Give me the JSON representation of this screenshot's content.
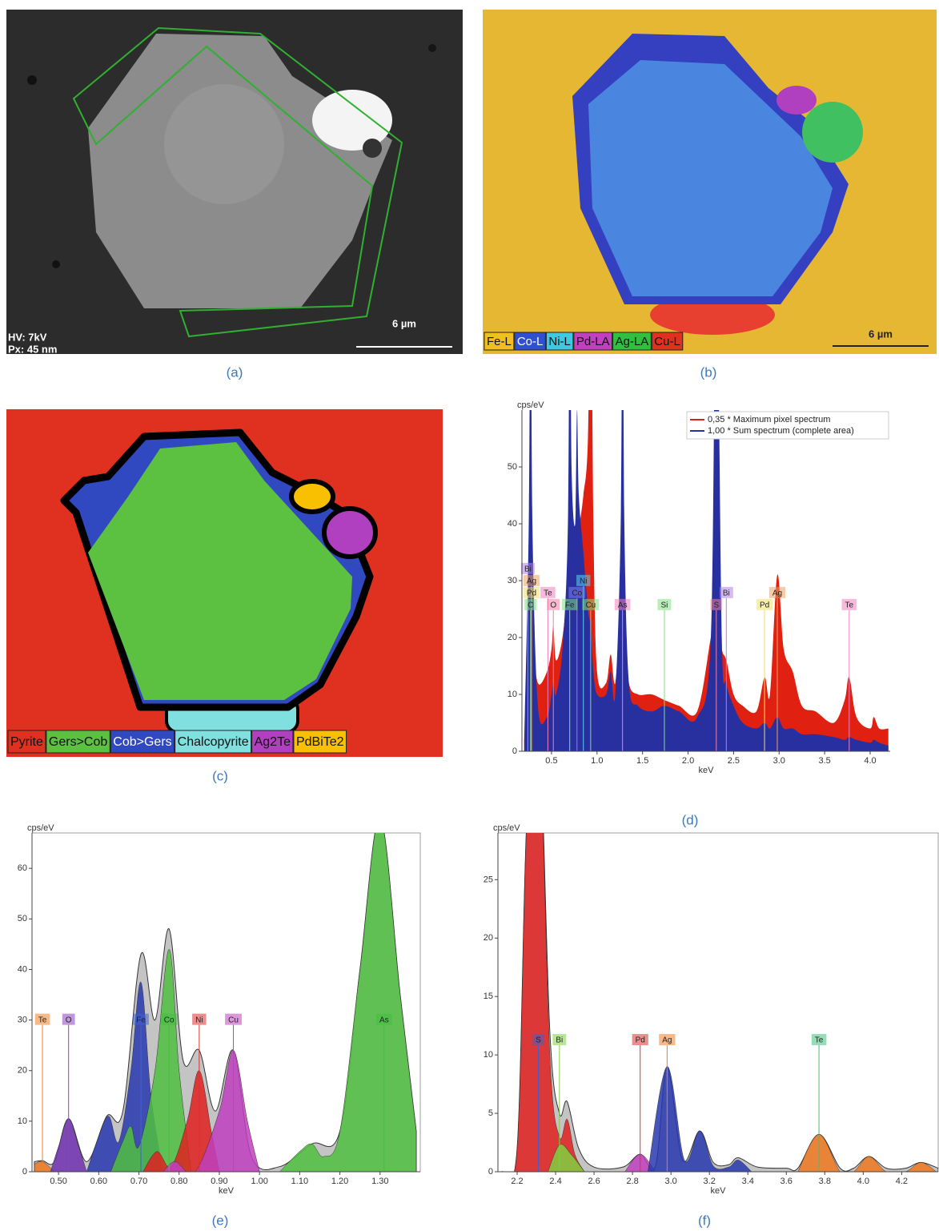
{
  "images": [
    {
      "caption": "(a)",
      "labels": [
        "HV: 7kV",
        "Px: 45 nm"
      ],
      "scale": "6 µm"
    },
    {
      "caption": "(b)",
      "scale": "6 µm",
      "legend": [
        {
          "text": "Fe-L",
          "color": "#f0c020"
        },
        {
          "text": "Co-L",
          "color": "#3050d0"
        },
        {
          "text": "Ni-L",
          "color": "#40c8e0"
        },
        {
          "text": "Pd-LA",
          "color": "#c040c0"
        },
        {
          "text": "Ag-LA",
          "color": "#30c040"
        },
        {
          "text": "Cu-L",
          "color": "#e03020"
        }
      ]
    },
    {
      "caption": "(c)",
      "legend": [
        {
          "text": "Pyrite",
          "color": "#e03020"
        },
        {
          "text": "Gers>Cob",
          "color": "#5cc040"
        },
        {
          "text": "Cob>Gers",
          "color": "#3048c0"
        },
        {
          "text": "Chalcopyrite",
          "color": "#80e0e0"
        },
        {
          "text": "Ag2Te",
          "color": "#b040c0"
        },
        {
          "text": "PdBiTe2",
          "color": "#f8c000"
        }
      ]
    }
  ],
  "chart_data": [
    {
      "type": "area",
      "caption": "(d)",
      "y_label": "cps/eV",
      "x_label": "keV",
      "xlim": [
        0.175,
        4.22
      ],
      "ylim": [
        0,
        60
      ],
      "xticks": [
        0.5,
        {
          "value": 1,
          "label": "1.0"
        },
        1.5,
        {
          "value": 2,
          "label": "2.0"
        },
        2.5,
        {
          "value": 3,
          "label": "3.0"
        },
        3.5,
        {
          "value": 4,
          "label": "4.0"
        }
      ],
      "yticks": [
        0,
        10,
        20,
        30,
        40,
        50
      ],
      "series": [
        {
          "name": "0,35 * Maximum pixel spectrum",
          "color": "#e02010",
          "x": [
            0.2,
            0.25,
            0.27,
            0.29,
            0.35,
            0.45,
            0.5,
            0.52,
            0.55,
            0.62,
            0.68,
            0.7,
            0.72,
            0.76,
            0.78,
            0.8,
            0.85,
            0.9,
            0.93,
            0.96,
            1.0,
            1.1,
            1.15,
            1.2,
            1.26,
            1.28,
            1.3,
            1.35,
            1.45,
            1.6,
            1.74,
            1.9,
            2.1,
            2.25,
            2.31,
            2.37,
            2.42,
            2.5,
            2.6,
            2.75,
            2.84,
            2.9,
            2.98,
            3.05,
            3.15,
            3.25,
            3.4,
            3.6,
            3.72,
            3.77,
            3.85,
            4.0,
            4.04,
            4.1,
            4.2
          ],
          "values": [
            2,
            15,
            30,
            20,
            12,
            14,
            18,
            22,
            16,
            20,
            30,
            40,
            35,
            38,
            45,
            40,
            45,
            55,
            90,
            40,
            14,
            12,
            17,
            12,
            25,
            30,
            22,
            12,
            10,
            10,
            9,
            8,
            7,
            20,
            25,
            18,
            16,
            10,
            8,
            7,
            13,
            10,
            31,
            18,
            14,
            8,
            7,
            5,
            9,
            13,
            6,
            4,
            6,
            4,
            4
          ]
        },
        {
          "name": "1,00 * Sum spectrum (complete area)",
          "color": "#2830a0",
          "x": [
            0.2,
            0.25,
            0.27,
            0.29,
            0.35,
            0.45,
            0.5,
            0.52,
            0.55,
            0.62,
            0.68,
            0.7,
            0.72,
            0.76,
            0.78,
            0.8,
            0.85,
            0.9,
            0.93,
            0.96,
            1.0,
            1.1,
            1.15,
            1.2,
            1.26,
            1.28,
            1.3,
            1.35,
            1.45,
            1.6,
            1.74,
            1.9,
            2.1,
            2.25,
            2.31,
            2.37,
            2.42,
            2.5,
            2.6,
            2.75,
            2.84,
            2.9,
            2.98,
            3.05,
            3.15,
            3.25,
            3.4,
            3.6,
            3.72,
            3.77,
            3.85,
            4.0,
            4.04,
            4.1,
            4.2
          ],
          "values": [
            2,
            40,
            90,
            40,
            8,
            6,
            10,
            12,
            10,
            18,
            40,
            90,
            50,
            40,
            60,
            45,
            35,
            25,
            22,
            14,
            10,
            10,
            14,
            10,
            40,
            90,
            40,
            12,
            8,
            7,
            8,
            7,
            6,
            20,
            90,
            20,
            12,
            8,
            5,
            4,
            5,
            4,
            6,
            4,
            4,
            3,
            3,
            2.5,
            2,
            2.5,
            2,
            1.5,
            2,
            1.5,
            1
          ]
        }
      ],
      "annotations": [
        {
          "text": "C",
          "x": 0.27,
          "color": "#80e080"
        },
        {
          "text": "O",
          "x": 0.52,
          "color": "#f080a0"
        },
        {
          "text": "Fe",
          "x": 0.7,
          "color": "#80e080"
        },
        {
          "text": "Cu",
          "x": 0.93,
          "color": "#80e080"
        },
        {
          "text": "As",
          "x": 1.28,
          "color": "#f080c0"
        },
        {
          "text": "Si",
          "x": 1.74,
          "color": "#80e080"
        },
        {
          "text": "S",
          "x": 2.31,
          "color": "#f080a0"
        },
        {
          "text": "Pd",
          "x": 2.84,
          "color": "#f0e060"
        },
        {
          "text": "Te",
          "x": 3.77,
          "color": "#f080c0"
        },
        {
          "text": "Te",
          "x": 0.46,
          "color": "#f080c0"
        },
        {
          "text": "Co",
          "x": 0.78,
          "color": "#8080f0"
        },
        {
          "text": "Bi",
          "x": 2.42,
          "color": "#b080f0"
        },
        {
          "text": "Ag",
          "x": 2.98,
          "color": "#f0a060"
        },
        {
          "text": "Pd",
          "x": 0.28,
          "color": "#f0e060"
        },
        {
          "text": "Ni",
          "x": 0.85,
          "color": "#60d0f0"
        },
        {
          "text": "Ag",
          "x": 0.28,
          "color": "#f0a060"
        },
        {
          "text": "Bi",
          "x": 0.24,
          "color": "#b080f0"
        }
      ]
    },
    {
      "type": "area",
      "caption": "(e)",
      "y_label": "cps/eV",
      "x_label": "keV",
      "xlim": [
        0.434,
        1.4
      ],
      "ylim": [
        0,
        67
      ],
      "xticks": [
        {
          "value": 0.5,
          "label": "0.50"
        },
        {
          "value": 0.6,
          "label": "0.60"
        },
        {
          "value": 0.7,
          "label": "0.70"
        },
        {
          "value": 0.8,
          "label": "0.80"
        },
        {
          "value": 0.9,
          "label": "0.90"
        },
        {
          "value": 1,
          "label": "1.00"
        },
        {
          "value": 1.1,
          "label": "1.10"
        },
        {
          "value": 1.2,
          "label": "1.20"
        },
        {
          "value": 1.3,
          "label": "1.30"
        }
      ],
      "yticks": [
        0,
        10,
        20,
        30,
        40,
        50,
        60
      ],
      "series": [
        {
          "color": "#c4c4c4",
          "x": [
            0.44,
            0.46,
            0.49,
            0.525,
            0.57,
            0.62,
            0.66,
            0.705,
            0.74,
            0.775,
            0.81,
            0.85,
            0.89,
            0.935,
            0.98,
            1.05,
            1.13,
            1.2,
            1.25,
            1.3,
            1.35,
            1.39
          ],
          "values": [
            2,
            2.2,
            2,
            10.5,
            2,
            11,
            12,
            43,
            30,
            48,
            22,
            24,
            12,
            24,
            3,
            1,
            5.5,
            8,
            40,
            70,
            35,
            8
          ]
        },
        {
          "color": "#f07820",
          "x": [
            0.44,
            0.46,
            0.49
          ],
          "values": [
            1.5,
            2,
            0
          ]
        },
        {
          "color": "#7030b0",
          "x": [
            0.48,
            0.5,
            0.525,
            0.55,
            0.57
          ],
          "values": [
            0,
            5,
            10.5,
            5,
            0
          ]
        },
        {
          "color": "#2838b0",
          "x": [
            0.57,
            0.6,
            0.625,
            0.65,
            0.68,
            0.705,
            0.73,
            0.76
          ],
          "values": [
            0,
            7,
            11,
            6,
            20,
            37.5,
            15,
            0
          ]
        },
        {
          "color": "#50c040",
          "x": [
            0.63,
            0.66,
            0.68,
            0.7,
            0.74,
            0.775,
            0.8,
            0.83
          ],
          "values": [
            0,
            6,
            9,
            5,
            20,
            44,
            20,
            0
          ]
        },
        {
          "color": "#e02020",
          "x": [
            0.71,
            0.745,
            0.78,
            0.82,
            0.85,
            0.88,
            0.9
          ],
          "values": [
            0,
            4,
            1,
            10,
            20,
            8,
            0
          ]
        },
        {
          "color": "#c040c0",
          "x": [
            0.76,
            0.79,
            0.84,
            0.9,
            0.935,
            0.97,
            1.0
          ],
          "values": [
            0,
            2,
            0,
            12,
            24,
            10,
            0
          ]
        },
        {
          "color": "#50c040",
          "x": [
            1.05,
            1.1,
            1.13,
            1.16,
            1.2,
            1.25,
            1.3,
            1.35,
            1.39
          ],
          "values": [
            0,
            4,
            5.5,
            3,
            8,
            40,
            70,
            35,
            8
          ]
        }
      ],
      "annotations": [
        {
          "text": "Te",
          "x": 0.46,
          "color": "#f08020"
        },
        {
          "text": "O",
          "x": 0.525,
          "color": "#9040c0"
        },
        {
          "text": "Fe",
          "x": 0.705,
          "color": "#4060d0"
        },
        {
          "text": "Co",
          "x": 0.775,
          "color": "#40c040"
        },
        {
          "text": "Ni",
          "x": 0.85,
          "color": "#e03030"
        },
        {
          "text": "Cu",
          "x": 0.935,
          "color": "#c040c0"
        },
        {
          "text": "As",
          "x": 1.31,
          "color": "#40c040"
        }
      ]
    },
    {
      "type": "area",
      "caption": "(f)",
      "y_label": "cps/eV",
      "x_label": "keV",
      "xlim": [
        2.1,
        4.39
      ],
      "ylim": [
        0,
        29
      ],
      "xticks": [
        2.2,
        2.4,
        2.6,
        2.8,
        {
          "value": 3,
          "label": "3.0"
        },
        3.2,
        3.4,
        3.6,
        3.8,
        {
          "value": 4,
          "label": "4.0"
        },
        4.2
      ],
      "yticks": [
        0,
        5,
        10,
        15,
        20,
        25
      ],
      "series": [
        {
          "color": "#c4c4c4",
          "x": [
            2.12,
            2.2,
            2.25,
            2.31,
            2.37,
            2.42,
            2.46,
            2.52,
            2.6,
            2.75,
            2.84,
            2.92,
            2.98,
            3.06,
            3.15,
            3.22,
            3.3,
            3.35,
            3.45,
            3.6,
            3.66,
            3.77,
            3.88,
            3.95,
            4.03,
            4.12,
            4.22,
            4.3,
            4.39
          ],
          "values": [
            0,
            2,
            30,
            40,
            12,
            5,
            6,
            2,
            0.4,
            0.4,
            1.5,
            0.5,
            9,
            1,
            3.5,
            0.8,
            0.6,
            1.2,
            0.4,
            0.3,
            0.3,
            3.2,
            0.3,
            0.3,
            1.3,
            0.3,
            0.3,
            0.8,
            0.3
          ]
        },
        {
          "color": "#e02020",
          "x": [
            2.12,
            2.2,
            2.25,
            2.31,
            2.37,
            2.42,
            2.46,
            2.5,
            2.55
          ],
          "values": [
            0,
            2,
            30,
            40,
            10,
            3,
            4.5,
            1.5,
            0
          ]
        },
        {
          "color": "#80d040",
          "x": [
            2.36,
            2.42,
            2.48,
            2.55
          ],
          "values": [
            0,
            2.3,
            1.5,
            0
          ]
        },
        {
          "color": "#c040c0",
          "x": [
            2.76,
            2.84,
            2.92
          ],
          "values": [
            0,
            1.5,
            0
          ]
        },
        {
          "color": "#2838b0",
          "x": [
            2.88,
            2.98,
            3.07,
            3.15,
            3.22,
            3.3,
            3.35,
            3.42
          ],
          "values": [
            0,
            9,
            1,
            3.5,
            0.5,
            0.4,
            1,
            0
          ]
        },
        {
          "color": "#f07820",
          "x": [
            3.66,
            3.77,
            3.88,
            3.95,
            4.03,
            4.12,
            4.22,
            4.3,
            4.38
          ],
          "values": [
            0,
            3.2,
            0,
            0,
            1.3,
            0,
            0,
            0.8,
            0
          ]
        }
      ],
      "annotations": [
        {
          "text": "S",
          "x": 2.31,
          "color": "#4060d0"
        },
        {
          "text": "Bi",
          "x": 2.42,
          "color": "#80d040"
        },
        {
          "text": "Pd",
          "x": 2.84,
          "color": "#e03030"
        },
        {
          "text": "Ag",
          "x": 2.98,
          "color": "#f08020"
        },
        {
          "text": "Te",
          "x": 3.77,
          "color": "#40c080"
        }
      ]
    }
  ]
}
